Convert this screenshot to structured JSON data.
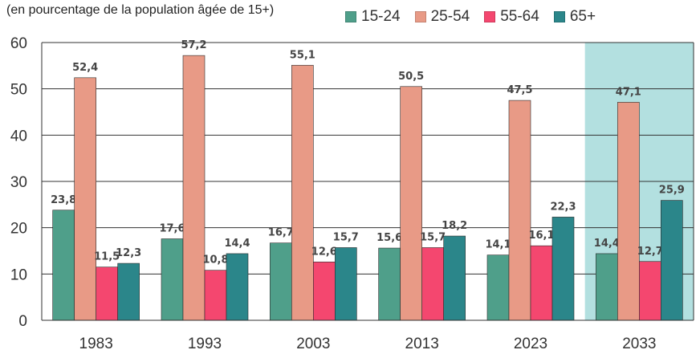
{
  "chart_data": {
    "type": "bar",
    "subtitle": "(en pourcentage de la population âgée de 15+)",
    "categories": [
      "1983",
      "1993",
      "2003",
      "2013",
      "2023",
      "2033"
    ],
    "series": [
      {
        "name": "15-24",
        "color": "#4f9f8a",
        "values": [
          23.8,
          17.6,
          16.7,
          15.6,
          14.1,
          14.4
        ],
        "labels": [
          "23,8",
          "17,6",
          "16,7",
          "15,6",
          "14,1",
          "14,4"
        ]
      },
      {
        "name": "25-54",
        "color": "#e89a86",
        "values": [
          52.4,
          57.2,
          55.1,
          50.5,
          47.5,
          47.1
        ],
        "labels": [
          "52,4",
          "57,2",
          "55,1",
          "50,5",
          "47,5",
          "47,1"
        ]
      },
      {
        "name": "55-64",
        "color": "#f4476f",
        "values": [
          11.5,
          10.8,
          12.6,
          15.7,
          16.1,
          12.7
        ],
        "labels": [
          "11,5",
          "10,8",
          "12,6",
          "15,7",
          "16,1",
          "12,7"
        ]
      },
      {
        "name": "65+",
        "color": "#2b868a",
        "values": [
          12.3,
          14.4,
          15.7,
          18.2,
          22.3,
          25.9
        ],
        "labels": [
          "12,3",
          "14,4",
          "15,7",
          "18,2",
          "22,3",
          "25,9"
        ]
      }
    ],
    "yticks": [
      "0",
      "10",
      "20",
      "30",
      "40",
      "50",
      "60"
    ],
    "ylim": [
      0,
      60
    ],
    "grid": true,
    "highlight_category": "2033",
    "highlight_color": "#b3e0e0",
    "legend_position": "top-right"
  }
}
